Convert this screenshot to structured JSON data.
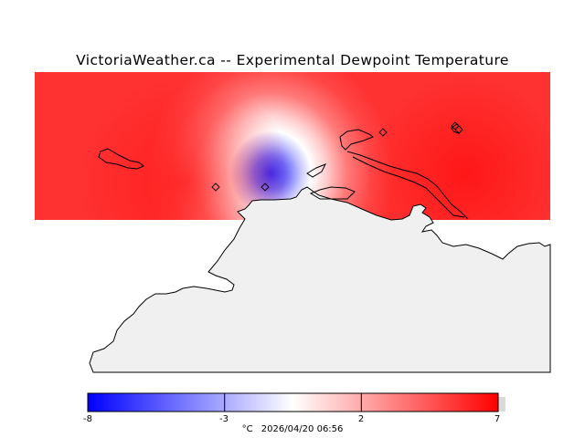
{
  "title": "VictoriaWeather.ca -- Experimental Dewpoint Temperature",
  "colorbar": {
    "ticks": [
      "-8",
      "-3",
      "2",
      "7"
    ],
    "min": -8,
    "max": 7,
    "unit": "°C",
    "timestamp": "2026/04/20 06:56",
    "colors": {
      "low": "#0000ff",
      "mid": "#ffffff",
      "high": "#ff0000"
    }
  },
  "map": {
    "land_color": "#f0f0f0",
    "field_low_color": "#0000ff",
    "field_high_color": "#ff0000",
    "stations": 5
  }
}
